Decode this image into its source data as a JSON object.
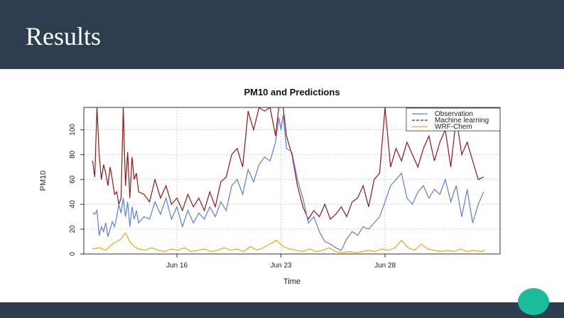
{
  "slide": {
    "title": "Results"
  },
  "colors": {
    "header": "#2e3e50",
    "accent": "#1abc9c"
  },
  "chart_data": {
    "type": "line",
    "title": "PM10 and Predictions",
    "xlabel": "Time",
    "ylabel": "PM10",
    "ylim": [
      0,
      118
    ],
    "xlim": [
      0,
      380
    ],
    "yticks": [
      0,
      20,
      40,
      60,
      80,
      100
    ],
    "xticks": [
      {
        "pos": 85,
        "label": "Jun 16"
      },
      {
        "pos": 180,
        "label": "Jun 23"
      },
      {
        "pos": 275,
        "label": "Jun 28"
      }
    ],
    "grid": true,
    "legend_position": "top-right",
    "series": [
      {
        "name": "Observation",
        "color": "#5b7fd4",
        "dash": "",
        "x": [
          8,
          10,
          12,
          14,
          16,
          18,
          20,
          22,
          24,
          26,
          28,
          30,
          32,
          34,
          36,
          38,
          40,
          42,
          44,
          46,
          48,
          50,
          55,
          60,
          65,
          70,
          75,
          80,
          85,
          90,
          95,
          100,
          105,
          110,
          115,
          120,
          125,
          130,
          135,
          140,
          145,
          150,
          155,
          160,
          165,
          170,
          175,
          178,
          180,
          182,
          185,
          190,
          195,
          200,
          205,
          210,
          215,
          220,
          225,
          230,
          235,
          240,
          245,
          250,
          255,
          260,
          265,
          270,
          275,
          280,
          285,
          290,
          295,
          300,
          305,
          310,
          315,
          320,
          325,
          330,
          335,
          340,
          345,
          350,
          355,
          360,
          365
        ],
        "values": [
          33,
          32,
          35,
          15,
          22,
          18,
          25,
          14,
          20,
          26,
          22,
          30,
          40,
          33,
          45,
          30,
          42,
          22,
          38,
          28,
          35,
          25,
          30,
          28,
          42,
          32,
          45,
          28,
          38,
          22,
          35,
          25,
          33,
          28,
          38,
          30,
          42,
          35,
          55,
          60,
          48,
          68,
          58,
          72,
          78,
          75,
          90,
          110,
          100,
          112,
          85,
          82,
          60,
          45,
          25,
          30,
          18,
          10,
          8,
          5,
          3,
          12,
          18,
          15,
          22,
          20,
          25,
          30,
          42,
          55,
          60,
          65,
          45,
          40,
          50,
          55,
          45,
          52,
          48,
          60,
          42,
          55,
          30,
          52,
          25,
          40,
          50
        ]
      },
      {
        "name": "Machine learning",
        "color": "#8b1a1a",
        "dash": "4,2",
        "x": [
          8,
          10,
          12,
          14,
          16,
          18,
          20,
          22,
          24,
          26,
          28,
          30,
          32,
          34,
          36,
          38,
          40,
          42,
          44,
          46,
          48,
          50,
          55,
          60,
          65,
          70,
          75,
          80,
          85,
          90,
          95,
          100,
          105,
          110,
          115,
          120,
          125,
          130,
          135,
          140,
          145,
          150,
          155,
          160,
          165,
          170,
          175,
          178,
          180,
          182,
          185,
          190,
          195,
          200,
          205,
          210,
          215,
          220,
          225,
          230,
          235,
          240,
          245,
          250,
          255,
          260,
          265,
          270,
          275,
          280,
          285,
          290,
          295,
          300,
          305,
          310,
          315,
          320,
          325,
          330,
          335,
          340,
          345,
          350,
          355,
          360,
          365
        ],
        "values": [
          75,
          62,
          118,
          80,
          60,
          72,
          65,
          55,
          70,
          60,
          48,
          50,
          40,
          45,
          118,
          55,
          82,
          45,
          78,
          60,
          65,
          50,
          48,
          42,
          60,
          45,
          55,
          40,
          45,
          35,
          48,
          38,
          45,
          35,
          50,
          38,
          58,
          62,
          80,
          85,
          70,
          115,
          100,
          118,
          115,
          118,
          95,
          118,
          118,
          118,
          95,
          80,
          55,
          38,
          28,
          35,
          30,
          40,
          28,
          32,
          38,
          30,
          42,
          45,
          55,
          38,
          60,
          65,
          118,
          70,
          85,
          75,
          90,
          80,
          70,
          85,
          95,
          75,
          90,
          100,
          70,
          110,
          80,
          90,
          75,
          60,
          62
        ]
      },
      {
        "name": "WRF-Chem",
        "color": "#e6a817",
        "dash": "",
        "x": [
          8,
          14,
          20,
          26,
          30,
          34,
          38,
          42,
          46,
          50,
          56,
          62,
          68,
          74,
          80,
          86,
          92,
          98,
          104,
          110,
          116,
          122,
          128,
          134,
          140,
          146,
          152,
          158,
          164,
          170,
          176,
          182,
          188,
          194,
          200,
          206,
          212,
          218,
          224,
          230,
          236,
          242,
          248,
          254,
          260,
          266,
          272,
          278,
          284,
          290,
          296,
          302,
          308,
          314,
          320,
          326,
          332,
          338,
          344,
          350,
          356,
          362,
          366
        ],
        "values": [
          4,
          5,
          3,
          8,
          10,
          12,
          17,
          10,
          6,
          4,
          3,
          5,
          3,
          2,
          4,
          3,
          5,
          2,
          3,
          4,
          2,
          3,
          5,
          3,
          4,
          2,
          6,
          3,
          5,
          8,
          11,
          6,
          4,
          3,
          2,
          4,
          2,
          3,
          5,
          2,
          1,
          2,
          1,
          2,
          3,
          2,
          4,
          3,
          5,
          11,
          5,
          3,
          8,
          4,
          3,
          2,
          3,
          2,
          4,
          2,
          3,
          2,
          3
        ]
      }
    ]
  }
}
